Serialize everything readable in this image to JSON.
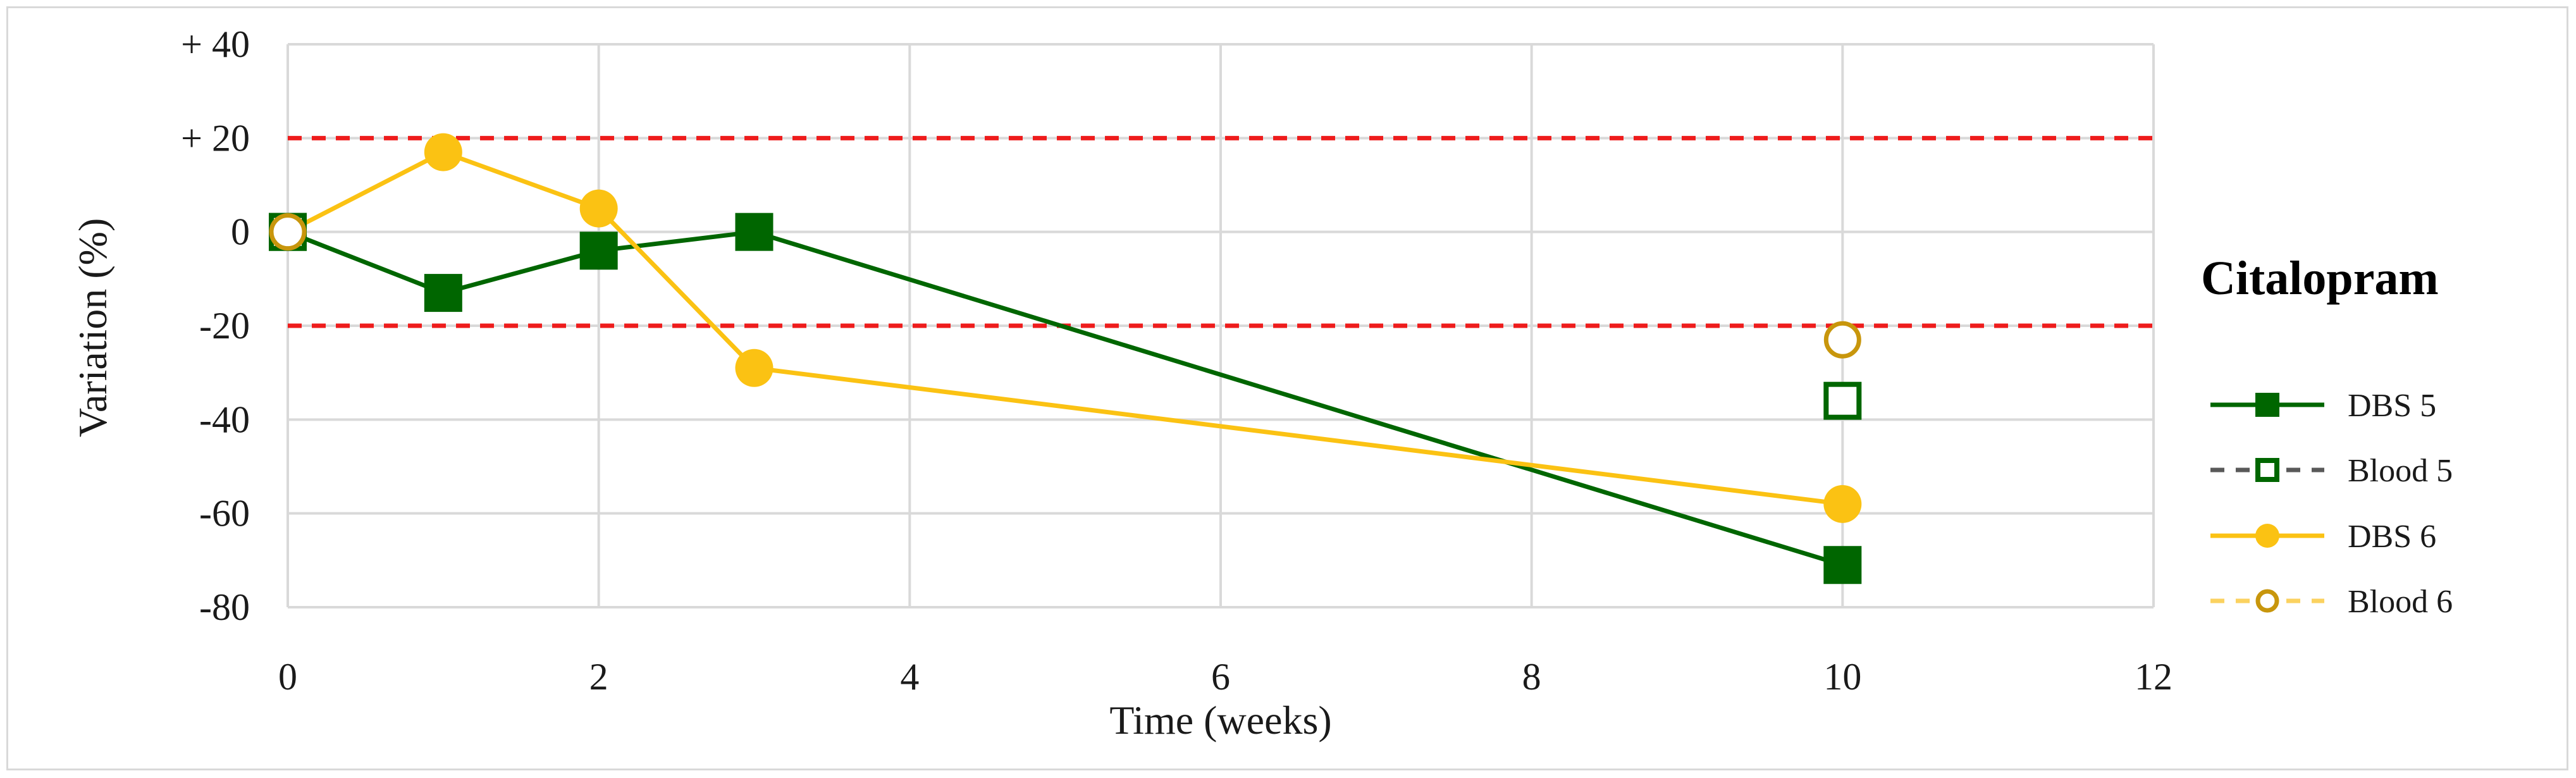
{
  "chart_data": {
    "type": "line",
    "title": "",
    "xlabel": "Time (weeks)",
    "ylabel": "Variation (%)",
    "xlim": [
      0,
      12
    ],
    "ylim": [
      -80,
      40
    ],
    "x_ticks": [
      0,
      2,
      4,
      6,
      8,
      10,
      12
    ],
    "x_tick_labels": [
      "0",
      "2",
      "4",
      "6",
      "8",
      "10",
      "12"
    ],
    "y_ticks": [
      40,
      20,
      0,
      -20,
      -40,
      -60,
      -80
    ],
    "y_tick_labels": [
      "+ 40",
      "+ 20",
      "0",
      "-20",
      "-40",
      "-60",
      "-80"
    ],
    "grid": true,
    "reference_lines": [
      {
        "y": 20,
        "color": "#ee1c1c",
        "style": "dashed"
      },
      {
        "y": -20,
        "color": "#ee1c1c",
        "style": "dashed"
      }
    ],
    "legend": {
      "title": "Citalopram",
      "position": "right"
    },
    "series": [
      {
        "name": "DBS  5",
        "color": "#006600",
        "marker": "square-filled",
        "line": "solid",
        "x": [
          0,
          1,
          2,
          3,
          10
        ],
        "y": [
          0,
          -13,
          -4,
          0,
          -71
        ]
      },
      {
        "name": "Blood 5",
        "color": "#006600",
        "marker": "square-open",
        "line": "dashed",
        "legend_line_color": "#595959",
        "x": [
          0,
          10
        ],
        "y": [
          0,
          -36
        ]
      },
      {
        "name": "DBS 6",
        "color": "#fbc213",
        "marker": "circle-filled",
        "line": "solid",
        "x": [
          0,
          1,
          2,
          3,
          10
        ],
        "y": [
          0,
          17,
          5,
          -29,
          -58
        ]
      },
      {
        "name": "Blood 6",
        "color": "#c8960c",
        "marker": "circle-open",
        "line": "dashed",
        "legend_line_color": "#fbd260",
        "x": [
          0,
          10
        ],
        "y": [
          0,
          -23
        ]
      }
    ]
  }
}
